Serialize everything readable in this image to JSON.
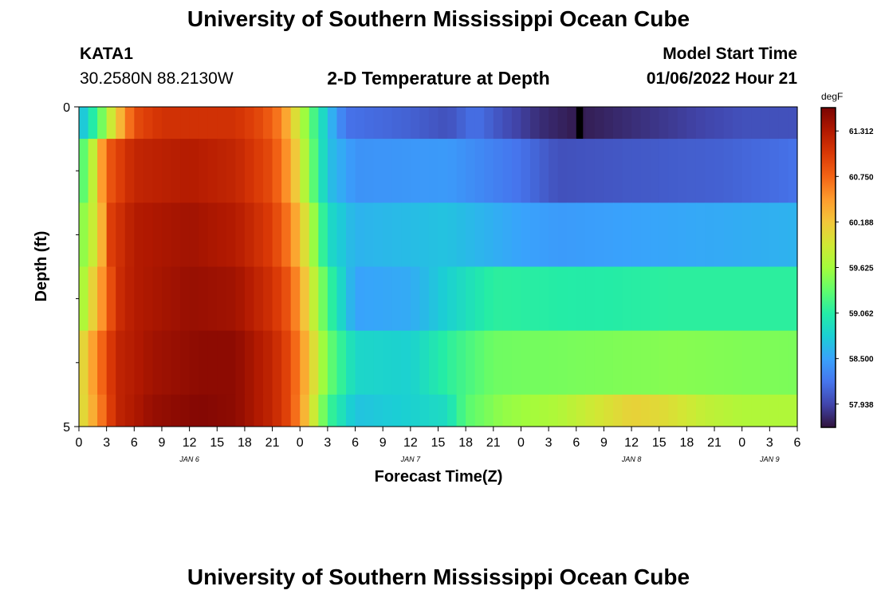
{
  "header": {
    "title": "University of Southern Mississippi Ocean Cube",
    "station_id": "KATA1",
    "station_coords": "30.2580N  88.2130W",
    "plot_title": "2-D Temperature at Depth",
    "start_label": "Model Start Time",
    "start_value": "01/06/2022 Hour 21"
  },
  "footer": {
    "title": "University of Southern Mississippi Ocean Cube"
  },
  "colors": {
    "colormap": [
      "#30123b",
      "#4145ab",
      "#4675ed",
      "#39a2fc",
      "#1bcfd4",
      "#24eca6",
      "#61fc6c",
      "#a4fc3b",
      "#d1e834",
      "#f3c63a",
      "#fe9b2d",
      "#f36315",
      "#d93806",
      "#b11901",
      "#7a0403"
    ]
  },
  "chart_data": {
    "type": "heatmap",
    "title": "2-D Temperature at Depth",
    "xlabel": "Forecast Time(Z)",
    "ylabel": "Depth (ft)",
    "ylim": [
      0,
      5
    ],
    "y_tick_labels": [
      "0",
      "5"
    ],
    "y_minor_ticks": [
      1,
      2,
      3,
      4
    ],
    "x_hours": [
      0,
      78
    ],
    "x_tick_labels": [
      "0",
      "3",
      "6",
      "9",
      "12",
      "15",
      "18",
      "21",
      "0",
      "3",
      "6",
      "9",
      "12",
      "15",
      "18",
      "21",
      "0",
      "3",
      "6",
      "9",
      "12",
      "15",
      "18",
      "21",
      "0",
      "3",
      "6"
    ],
    "day_labels": [
      {
        "label": "JAN 6",
        "hour": 12
      },
      {
        "label": "JAN 7",
        "hour": 36
      },
      {
        "label": "JAN 8",
        "hour": 60
      },
      {
        "label": "JAN 9",
        "hour": 75
      }
    ],
    "colorbar": {
      "unit": "degF",
      "min": 57.65,
      "max": 61.6,
      "labels": [
        "61.312",
        "60.750",
        "60.188",
        "59.625",
        "59.062",
        "58.500",
        "57.938"
      ]
    },
    "depth_layers": [
      {
        "depth_range": [
          0,
          0.5
        ],
        "profile": [
          [
            0,
            58.6
          ],
          [
            2,
            59.2
          ],
          [
            4,
            60.1
          ],
          [
            6,
            60.9
          ],
          [
            9,
            61.1
          ],
          [
            13,
            61.1
          ],
          [
            17,
            61.1
          ],
          [
            20,
            60.9
          ],
          [
            22,
            60.6
          ],
          [
            23.5,
            60.0
          ],
          [
            25,
            59.4
          ],
          [
            27,
            58.7
          ],
          [
            29,
            58.2
          ],
          [
            36,
            58.1
          ],
          [
            40,
            58.0
          ],
          [
            43,
            58.2
          ],
          [
            46,
            58.0
          ],
          [
            50,
            57.8
          ],
          [
            54,
            57.7
          ],
          [
            60,
            57.8
          ],
          [
            66,
            57.9
          ],
          [
            72,
            58.0
          ],
          [
            78,
            58.0
          ]
        ],
        "marker": {
          "hour": 54,
          "value": 57.4
        }
      },
      {
        "depth_range": [
          0.5,
          1.5
        ],
        "profile": [
          [
            0,
            59.1
          ],
          [
            1.5,
            59.8
          ],
          [
            3,
            60.8
          ],
          [
            6,
            61.2
          ],
          [
            12,
            61.3
          ],
          [
            17,
            61.2
          ],
          [
            21,
            60.9
          ],
          [
            23,
            60.4
          ],
          [
            25,
            59.5
          ],
          [
            27,
            58.7
          ],
          [
            30,
            58.4
          ],
          [
            40,
            58.45
          ],
          [
            48,
            58.2
          ],
          [
            52,
            58.0
          ],
          [
            60,
            58.05
          ],
          [
            70,
            58.1
          ],
          [
            78,
            58.2
          ]
        ]
      },
      {
        "depth_range": [
          1.5,
          2.5
        ],
        "profile": [
          [
            0,
            59.4
          ],
          [
            2,
            60.0
          ],
          [
            3.5,
            61.0
          ],
          [
            6,
            61.3
          ],
          [
            12,
            61.4
          ],
          [
            17,
            61.3
          ],
          [
            21,
            61.0
          ],
          [
            23,
            60.6
          ],
          [
            25,
            59.8
          ],
          [
            27,
            58.9
          ],
          [
            30,
            58.6
          ],
          [
            40,
            58.7
          ],
          [
            48,
            58.5
          ],
          [
            52,
            58.45
          ],
          [
            60,
            58.5
          ],
          [
            70,
            58.55
          ],
          [
            78,
            58.6
          ]
        ]
      },
      {
        "depth_range": [
          2.5,
          3.5
        ],
        "profile": [
          [
            0,
            59.5
          ],
          [
            2,
            60.3
          ],
          [
            4,
            61.1
          ],
          [
            6,
            61.3
          ],
          [
            12,
            61.45
          ],
          [
            17,
            61.4
          ],
          [
            21,
            61.1
          ],
          [
            23,
            60.8
          ],
          [
            25,
            60.0
          ],
          [
            27,
            59.2
          ],
          [
            30,
            58.5
          ],
          [
            36,
            58.55
          ],
          [
            40,
            58.8
          ],
          [
            45,
            59.1
          ],
          [
            55,
            59.05
          ],
          [
            65,
            59.1
          ],
          [
            78,
            59.1
          ]
        ]
      },
      {
        "depth_range": [
          3.5,
          4.5
        ],
        "profile": [
          [
            0,
            59.9
          ],
          [
            2,
            60.6
          ],
          [
            4,
            61.2
          ],
          [
            8,
            61.4
          ],
          [
            13,
            61.5
          ],
          [
            17,
            61.5
          ],
          [
            21,
            61.2
          ],
          [
            23,
            60.9
          ],
          [
            25,
            60.2
          ],
          [
            27,
            59.4
          ],
          [
            30,
            58.85
          ],
          [
            36,
            58.8
          ],
          [
            40,
            59.1
          ],
          [
            45,
            59.4
          ],
          [
            55,
            59.45
          ],
          [
            65,
            59.5
          ],
          [
            78,
            59.45
          ]
        ]
      },
      {
        "depth_range": [
          4.5,
          5
        ],
        "profile": [
          [
            0,
            59.9
          ],
          [
            2,
            60.5
          ],
          [
            4,
            61.2
          ],
          [
            8,
            61.45
          ],
          [
            13,
            61.55
          ],
          [
            17,
            61.5
          ],
          [
            21,
            61.2
          ],
          [
            23,
            60.9
          ],
          [
            25,
            60.1
          ],
          [
            27,
            59.2
          ],
          [
            30,
            58.7
          ],
          [
            36,
            58.8
          ],
          [
            40,
            58.9
          ],
          [
            42,
            59.3
          ],
          [
            46,
            59.55
          ],
          [
            52,
            59.7
          ],
          [
            56,
            59.9
          ],
          [
            60,
            60.1
          ],
          [
            64,
            60.0
          ],
          [
            68,
            59.8
          ],
          [
            72,
            59.7
          ],
          [
            78,
            59.7
          ]
        ]
      }
    ]
  }
}
